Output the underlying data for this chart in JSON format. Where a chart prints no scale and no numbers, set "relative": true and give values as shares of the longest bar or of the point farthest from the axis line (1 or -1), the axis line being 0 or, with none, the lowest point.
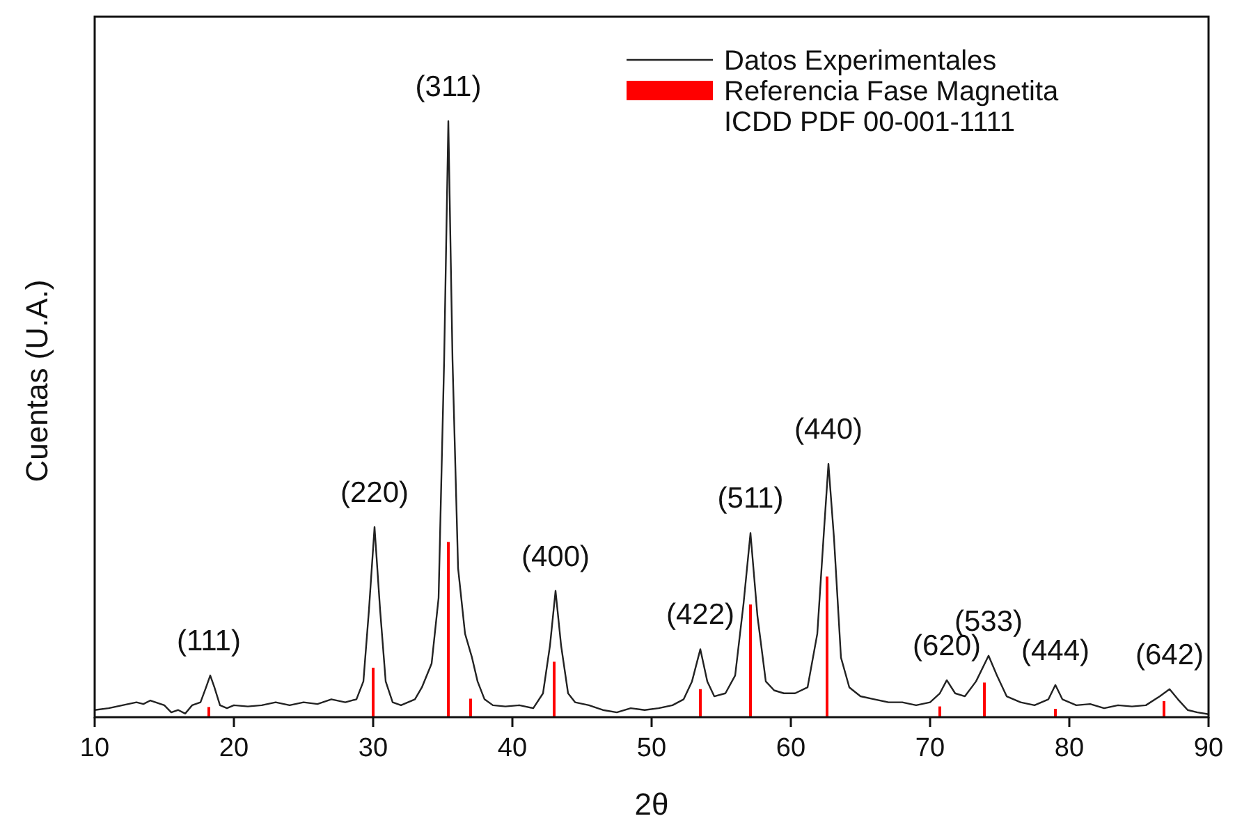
{
  "chart_data": {
    "type": "line",
    "xlabel": "2θ",
    "ylabel": "Cuentas (U.A.)",
    "relative": true,
    "xlim": [
      10,
      90
    ],
    "xticks": [
      10,
      20,
      30,
      40,
      50,
      60,
      70,
      80,
      90
    ],
    "legend": "top right",
    "grid": false,
    "series": [
      {
        "name": "Datos Experimentales",
        "color": "#222222",
        "x": [
          10,
          11,
          12,
          13,
          13.5,
          14,
          15,
          15.5,
          16,
          16.5,
          17,
          17.6,
          18.0,
          18.3,
          18.6,
          19.0,
          19.5,
          20,
          21,
          22,
          23,
          24,
          25,
          26,
          27,
          28,
          28.8,
          29.3,
          29.7,
          30.1,
          30.5,
          30.9,
          31.4,
          32,
          32.5,
          33,
          33.5,
          34.2,
          34.7,
          35.1,
          35.4,
          35.7,
          36.1,
          36.6,
          37.1,
          37.5,
          38,
          38.6,
          39.5,
          40.5,
          41.5,
          42.2,
          42.7,
          43.1,
          43.5,
          44,
          44.5,
          45.5,
          46.5,
          47.5,
          48.5,
          49.5,
          50.5,
          51.5,
          52.3,
          52.9,
          53.5,
          54.0,
          54.5,
          55.3,
          56.0,
          56.6,
          57.1,
          57.6,
          58.2,
          58.8,
          59.5,
          60.3,
          61.2,
          61.9,
          62.4,
          62.7,
          63.1,
          63.6,
          64.2,
          65,
          66,
          67,
          68,
          69,
          70,
          70.7,
          71.2,
          71.8,
          72.5,
          73.3,
          74.2,
          74.8,
          75.5,
          76.5,
          77.5,
          78.5,
          79.0,
          79.5,
          80.5,
          81.5,
          82.5,
          83.5,
          84.5,
          85.5,
          86.5,
          87.2,
          87.8,
          88.5,
          89.2,
          90
        ],
        "values": [
          0.012,
          0.015,
          0.02,
          0.025,
          0.022,
          0.028,
          0.02,
          0.008,
          0.012,
          0.006,
          0.02,
          0.025,
          0.05,
          0.07,
          0.05,
          0.02,
          0.015,
          0.02,
          0.018,
          0.02,
          0.025,
          0.02,
          0.025,
          0.022,
          0.03,
          0.025,
          0.03,
          0.06,
          0.18,
          0.319,
          0.18,
          0.06,
          0.025,
          0.02,
          0.025,
          0.03,
          0.05,
          0.09,
          0.2,
          0.6,
          1.0,
          0.6,
          0.25,
          0.14,
          0.1,
          0.06,
          0.03,
          0.02,
          0.018,
          0.02,
          0.015,
          0.04,
          0.12,
          0.212,
          0.12,
          0.04,
          0.025,
          0.02,
          0.012,
          0.008,
          0.015,
          0.012,
          0.015,
          0.02,
          0.03,
          0.06,
          0.114,
          0.06,
          0.035,
          0.04,
          0.07,
          0.19,
          0.309,
          0.17,
          0.06,
          0.045,
          0.04,
          0.04,
          0.05,
          0.14,
          0.32,
          0.425,
          0.3,
          0.1,
          0.05,
          0.035,
          0.03,
          0.025,
          0.025,
          0.02,
          0.025,
          0.04,
          0.062,
          0.04,
          0.035,
          0.06,
          0.103,
          0.07,
          0.035,
          0.025,
          0.02,
          0.03,
          0.054,
          0.03,
          0.02,
          0.022,
          0.015,
          0.02,
          0.018,
          0.02,
          0.035,
          0.047,
          0.03,
          0.012,
          0.008,
          0.005
        ]
      },
      {
        "name": "Referencia Fase Magnetita ICDD PDF 00-001-1111",
        "type": "bar",
        "color": "#ff0000",
        "x": [
          18.2,
          30.0,
          35.4,
          37.0,
          43.0,
          53.5,
          57.1,
          62.6,
          70.7,
          73.9,
          79.0,
          86.8
        ],
        "values": [
          0.017,
          0.083,
          0.294,
          0.031,
          0.093,
          0.047,
          0.189,
          0.236,
          0.018,
          0.058,
          0.014,
          0.027
        ]
      }
    ],
    "annotations": [
      {
        "text": "(111)",
        "x": 18.2,
        "y": 0.07
      },
      {
        "text": "(220)",
        "x": 30.1,
        "y": 0.319
      },
      {
        "text": "(311)",
        "x": 35.4,
        "y": 1.0
      },
      {
        "text": "(400)",
        "x": 43.1,
        "y": 0.212
      },
      {
        "text": "(422)",
        "x": 53.5,
        "y": 0.114
      },
      {
        "text": "(511)",
        "x": 57.1,
        "y": 0.309
      },
      {
        "text": "(440)",
        "x": 62.7,
        "y": 0.425
      },
      {
        "text": "(620)",
        "x": 71.2,
        "y": 0.062
      },
      {
        "text": "(533)",
        "x": 74.2,
        "y": 0.103
      },
      {
        "text": "(444)",
        "x": 79.0,
        "y": 0.054
      },
      {
        "text": "(642)",
        "x": 87.2,
        "y": 0.047
      }
    ]
  }
}
